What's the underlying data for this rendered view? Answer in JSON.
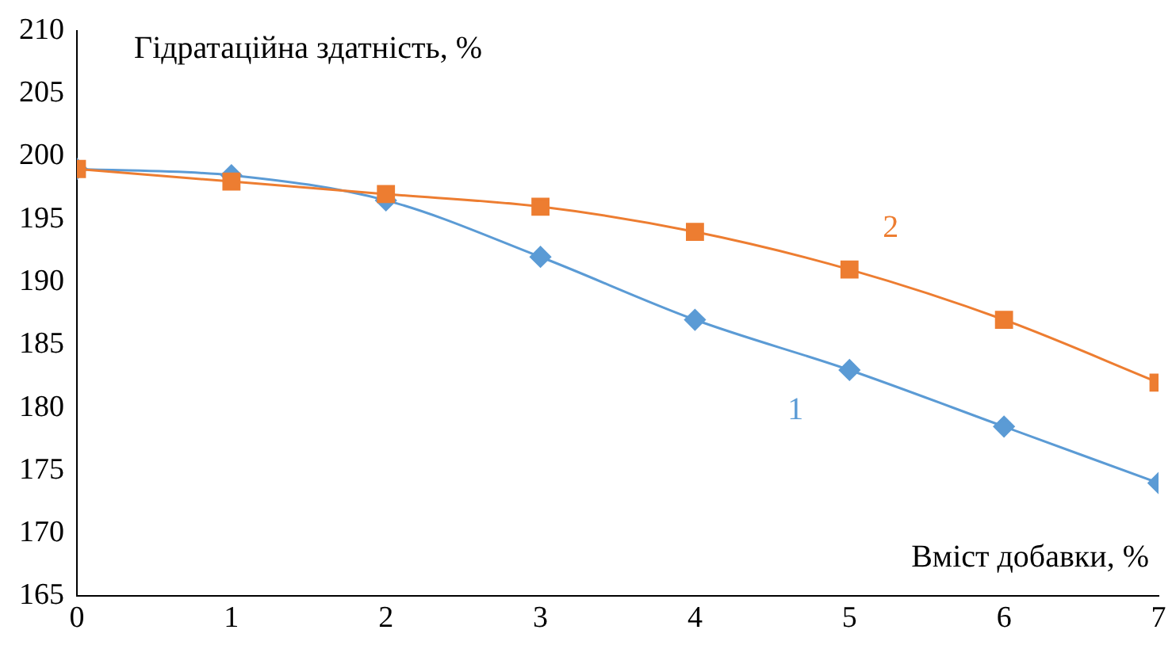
{
  "chart_data": {
    "type": "line",
    "xlabel": "Вміст добавки, %",
    "ylabel": "Гідратаційна здатність, %",
    "x": [
      0,
      1,
      2,
      3,
      4,
      5,
      6,
      7
    ],
    "series": [
      {
        "name": "1",
        "color": "#5b9bd5",
        "marker": "diamond",
        "values": [
          199,
          198.5,
          196.5,
          192,
          187,
          183,
          178.5,
          174
        ]
      },
      {
        "name": "2",
        "color": "#ed7d31",
        "marker": "square",
        "values": [
          199,
          198,
          197,
          196,
          194,
          191,
          187,
          182
        ]
      }
    ],
    "xlim": [
      0,
      7
    ],
    "xticks": [
      0,
      1,
      2,
      3,
      4,
      5,
      6,
      7
    ],
    "ylim": [
      165,
      210
    ],
    "yticks": [
      165,
      170,
      175,
      180,
      185,
      190,
      195,
      200,
      205,
      210
    ],
    "grid": false,
    "legend": false
  }
}
